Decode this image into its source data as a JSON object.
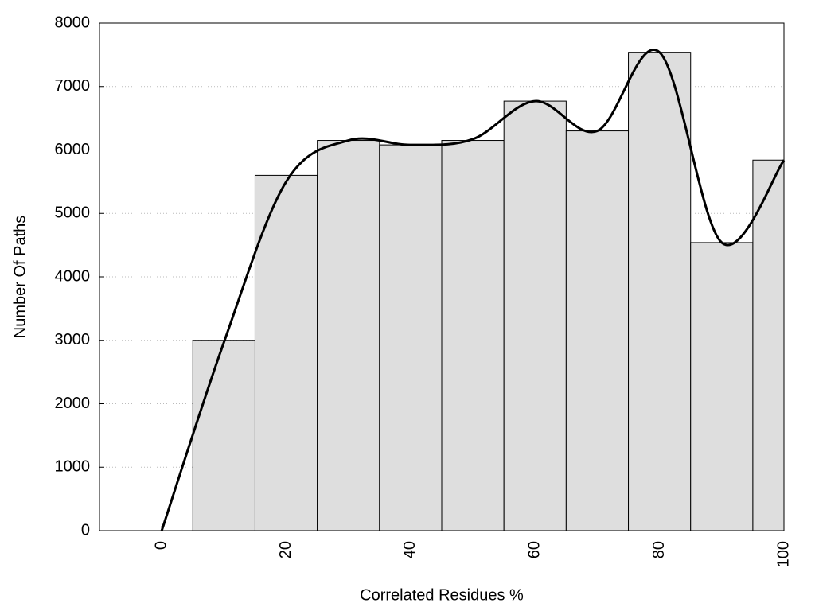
{
  "chart_data": {
    "type": "histogram",
    "xlabel": "Correlated Residues %",
    "ylabel": "Number Of Paths",
    "bins": [
      5,
      15,
      25,
      35,
      45,
      55,
      65,
      75,
      85,
      95,
      100
    ],
    "values": [
      3000,
      5600,
      6150,
      6080,
      6150,
      6770,
      6300,
      7540,
      4540,
      5840
    ],
    "color": "#dedede",
    "curve": {
      "color": "#000000",
      "x": [
        0,
        10,
        20,
        30,
        40,
        50,
        60,
        70,
        80,
        90,
        100
      ],
      "values": [
        0,
        2970,
        5500,
        6150,
        6080,
        6170,
        6770,
        6300,
        7540,
        4540,
        5840
      ]
    },
    "xlim": [
      -10,
      100
    ],
    "xticks": [
      0,
      20,
      40,
      60,
      80,
      100
    ],
    "ylim": [
      0,
      8000
    ],
    "yticks": [
      0,
      1000,
      2000,
      3000,
      4000,
      5000,
      6000,
      7000,
      8000
    ],
    "grid": true
  }
}
